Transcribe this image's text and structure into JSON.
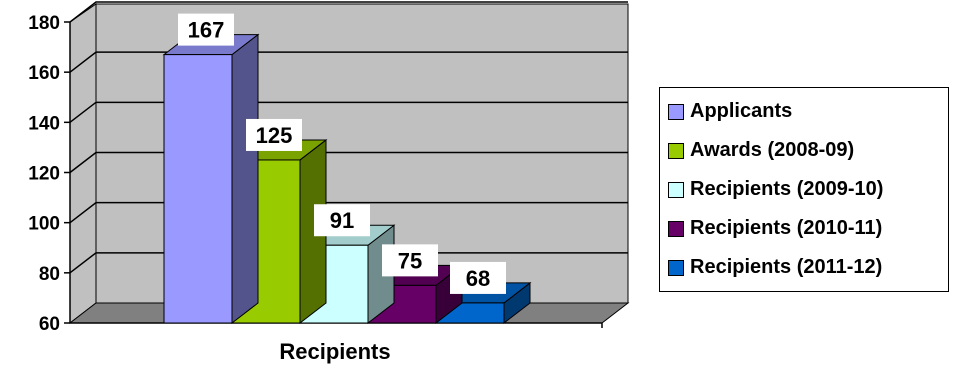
{
  "chart_data": {
    "type": "bar",
    "xlabel": "Recipients",
    "ylim": [
      60,
      180
    ],
    "yticks": [
      60,
      80,
      100,
      120,
      140,
      160,
      180
    ],
    "grid": true,
    "legend_position": "right",
    "series": [
      {
        "name": "Applicants",
        "value": 167,
        "color": "#9999ff"
      },
      {
        "name": "Awards (2008-09)",
        "value": 125,
        "color": "#99cc00"
      },
      {
        "name": "Recipients (2009-10)",
        "value": 91,
        "color": "#ccffff"
      },
      {
        "name": "Recipients (2010-11)",
        "value": 75,
        "color": "#660066"
      },
      {
        "name": "Recipients (2011-12)",
        "value": 68,
        "color": "#0066cc"
      }
    ],
    "wall_color": "#c0c0c0",
    "floor_color": "#808080"
  }
}
